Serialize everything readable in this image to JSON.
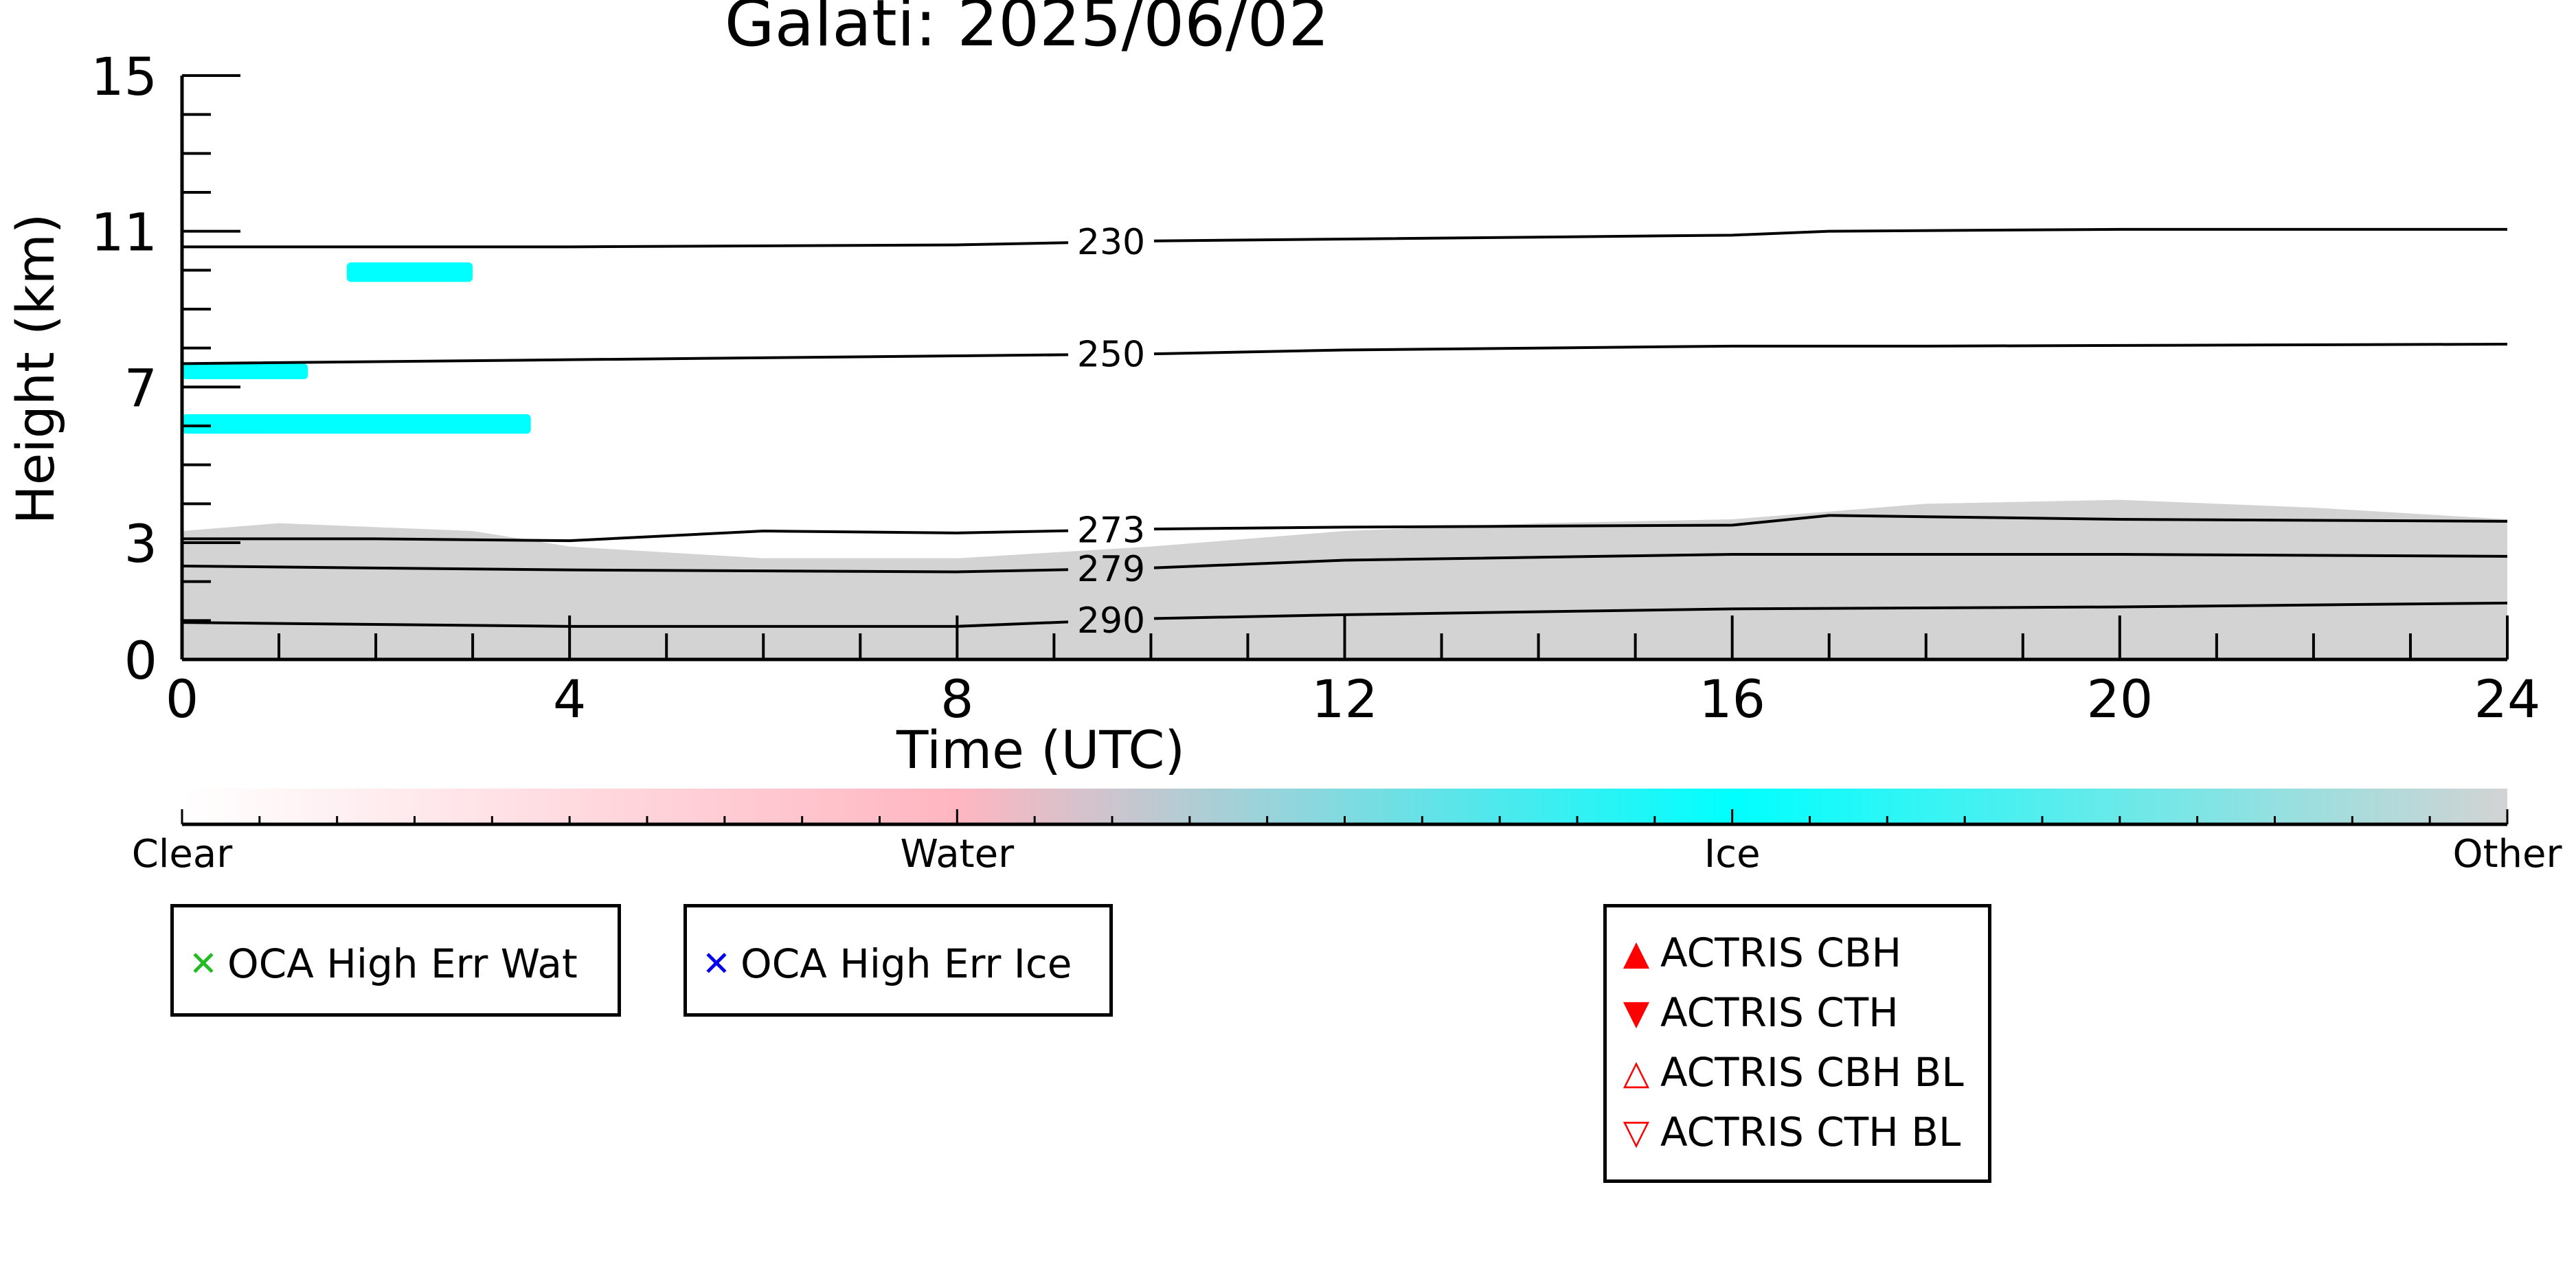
{
  "chart_data": {
    "type": "heatmap",
    "title": "Galati: 2025/06/02",
    "xlabel": "Time (UTC)",
    "ylabel": "Height (km)",
    "xlim": [
      0,
      24
    ],
    "ylim": [
      0,
      15
    ],
    "x_ticks": [
      "0",
      "4",
      "8",
      "12",
      "16",
      "20",
      "24"
    ],
    "y_ticks": [
      "0",
      "3",
      "7",
      "11",
      "15"
    ],
    "colorbar": {
      "labels": [
        "Clear",
        "Water",
        "Ice",
        "Other"
      ],
      "colors": [
        "#ffffff",
        "#ffb6c1",
        "#00ffff",
        "#d3d3d3"
      ]
    },
    "temperature_contours": [
      {
        "label": "230",
        "points": [
          [
            0,
            10.6
          ],
          [
            4,
            10.6
          ],
          [
            8,
            10.65
          ],
          [
            10,
            10.75
          ],
          [
            12,
            10.8
          ],
          [
            16,
            10.9
          ],
          [
            17,
            11.0
          ],
          [
            20,
            11.05
          ],
          [
            24,
            11.05
          ]
        ]
      },
      {
        "label": "250",
        "points": [
          [
            0,
            7.6
          ],
          [
            4,
            7.7
          ],
          [
            8,
            7.8
          ],
          [
            10,
            7.85
          ],
          [
            12,
            7.95
          ],
          [
            16,
            8.05
          ],
          [
            18,
            8.05
          ],
          [
            24,
            8.1
          ]
        ]
      },
      {
        "label": "273",
        "points": [
          [
            0,
            3.1
          ],
          [
            2,
            3.1
          ],
          [
            4,
            3.05
          ],
          [
            6,
            3.3
          ],
          [
            8,
            3.25
          ],
          [
            10,
            3.35
          ],
          [
            12,
            3.4
          ],
          [
            16,
            3.45
          ],
          [
            17,
            3.7
          ],
          [
            20,
            3.6
          ],
          [
            24,
            3.55
          ]
        ]
      },
      {
        "label": "279",
        "points": [
          [
            0,
            2.4
          ],
          [
            4,
            2.3
          ],
          [
            8,
            2.25
          ],
          [
            10,
            2.35
          ],
          [
            12,
            2.55
          ],
          [
            16,
            2.7
          ],
          [
            20,
            2.7
          ],
          [
            24,
            2.65
          ]
        ]
      },
      {
        "label": "290",
        "points": [
          [
            0,
            0.95
          ],
          [
            4,
            0.85
          ],
          [
            8,
            0.85
          ],
          [
            10,
            1.05
          ],
          [
            12,
            1.15
          ],
          [
            16,
            1.3
          ],
          [
            20,
            1.35
          ],
          [
            24,
            1.45
          ]
        ]
      }
    ],
    "regions": [
      {
        "class": "Other",
        "boundary_top": [
          [
            0,
            3.3
          ],
          [
            1,
            3.5
          ],
          [
            2,
            3.4
          ],
          [
            3,
            3.3
          ],
          [
            4,
            2.9
          ],
          [
            6,
            2.6
          ],
          [
            8,
            2.6
          ],
          [
            10,
            2.9
          ],
          [
            12,
            3.3
          ],
          [
            14,
            3.5
          ],
          [
            16,
            3.6
          ],
          [
            18,
            4.0
          ],
          [
            20,
            4.1
          ],
          [
            22,
            3.9
          ],
          [
            24,
            3.6
          ]
        ]
      },
      {
        "class": "Ice",
        "x_range": [
          0,
          3.6
        ],
        "y_range": [
          5.8,
          6.3
        ]
      },
      {
        "class": "Ice",
        "x_range": [
          0,
          1.3
        ],
        "y_range": [
          7.2,
          7.6
        ]
      },
      {
        "class": "Ice",
        "x_range": [
          1.7,
          3.0
        ],
        "y_range": [
          9.7,
          10.2
        ]
      }
    ]
  },
  "legend_oca": [
    {
      "label": "OCA High Err Wat",
      "marker": "x-mark",
      "color": "#22bb22"
    },
    {
      "label": "OCA High Err Ice",
      "marker": "x-mark",
      "color": "#0000ee"
    }
  ],
  "legend_actris": [
    {
      "label": "ACTRIS CBH",
      "marker": "▲",
      "color": "#ff0000"
    },
    {
      "label": "ACTRIS CTH",
      "marker": "▼",
      "color": "#ff0000"
    },
    {
      "label": "ACTRIS CBH BL",
      "marker": "△",
      "color": "#ff0000"
    },
    {
      "label": "ACTRIS CTH BL",
      "marker": "▽",
      "color": "#ff0000"
    }
  ]
}
